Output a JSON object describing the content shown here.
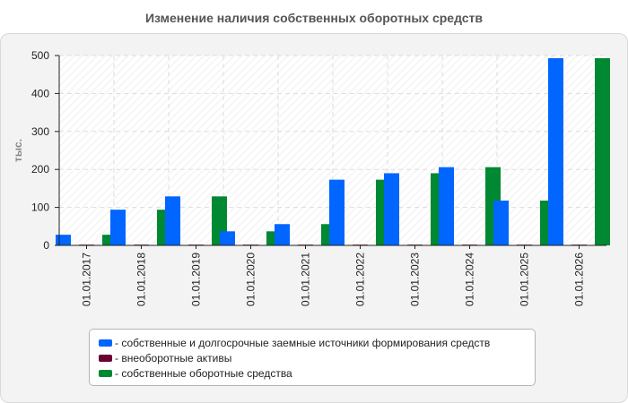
{
  "chart_data": {
    "type": "bar",
    "title": "Изменение наличия собственных оборотных средств",
    "ylabel": "тыс.",
    "ylim": [
      0,
      500
    ],
    "yticks": [
      "0",
      "100",
      "200",
      "300",
      "400",
      "500"
    ],
    "ytick_values": [
      0,
      100,
      200,
      300,
      400,
      500
    ],
    "categories": [
      "01.01.2017",
      "01.01.2018",
      "01.01.2019",
      "01.01.2020",
      "01.01.2021",
      "01.01.2022",
      "01.01.2023",
      "01.01.2024",
      "01.01.2025",
      "01.01.2026"
    ],
    "series": [
      {
        "name": "- собственные и долгосрочные заемные источники формирования средств",
        "color": "#0066ff",
        "values": [
          28,
          94,
          129,
          37,
          56,
          173,
          190,
          206,
          118,
          493
        ]
      },
      {
        "name": "- внеоборотные активы",
        "color": "#6b0033",
        "values": [
          2,
          2,
          2,
          2,
          2,
          2,
          2,
          2,
          2,
          2
        ]
      },
      {
        "name": "- собственные оборотные средства",
        "color": "#008833",
        "values": [
          28,
          94,
          129,
          37,
          56,
          173,
          190,
          206,
          118,
          493
        ]
      }
    ],
    "grid": true,
    "legend_position": "bottom"
  }
}
